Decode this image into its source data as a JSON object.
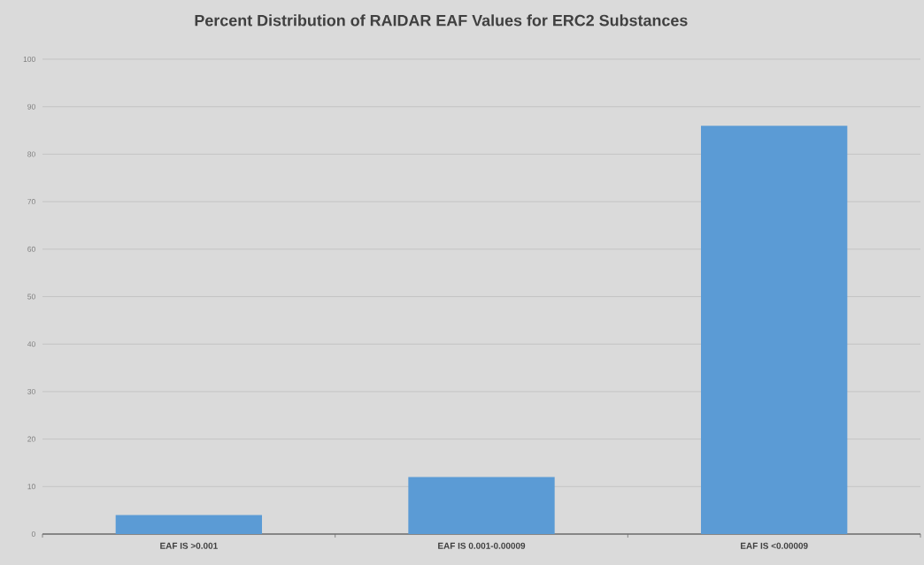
{
  "chart_data": {
    "type": "bar",
    "title": "Percent Distribution of RAIDAR EAF Values for ERC2 Substances",
    "categories": [
      "EAF IS >0.001",
      "EAF IS 0.001-0.00009",
      "EAF IS <0.00009"
    ],
    "values": [
      4,
      12,
      86
    ],
    "color": "#5b9bd5",
    "ylim": [
      0,
      100
    ],
    "yticks": [
      0,
      10,
      20,
      30,
      40,
      50,
      60,
      70,
      80,
      90,
      100
    ],
    "grid": "y"
  }
}
